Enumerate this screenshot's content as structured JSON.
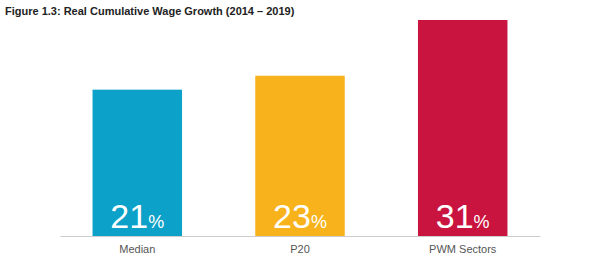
{
  "chart_data": {
    "type": "bar",
    "title": "Figure 1.3: Real Cumulative Wage Growth (2014 – 2019)",
    "categories": [
      "Median",
      "P20",
      "PWM Sectors"
    ],
    "values": [
      21,
      23,
      31
    ],
    "value_labels": [
      "21%",
      "23%",
      "31%"
    ],
    "colors": [
      "#0ba1c9",
      "#f8b21b",
      "#c9143f"
    ],
    "data_labels": true,
    "tick_labels": "x",
    "grid": false
  }
}
